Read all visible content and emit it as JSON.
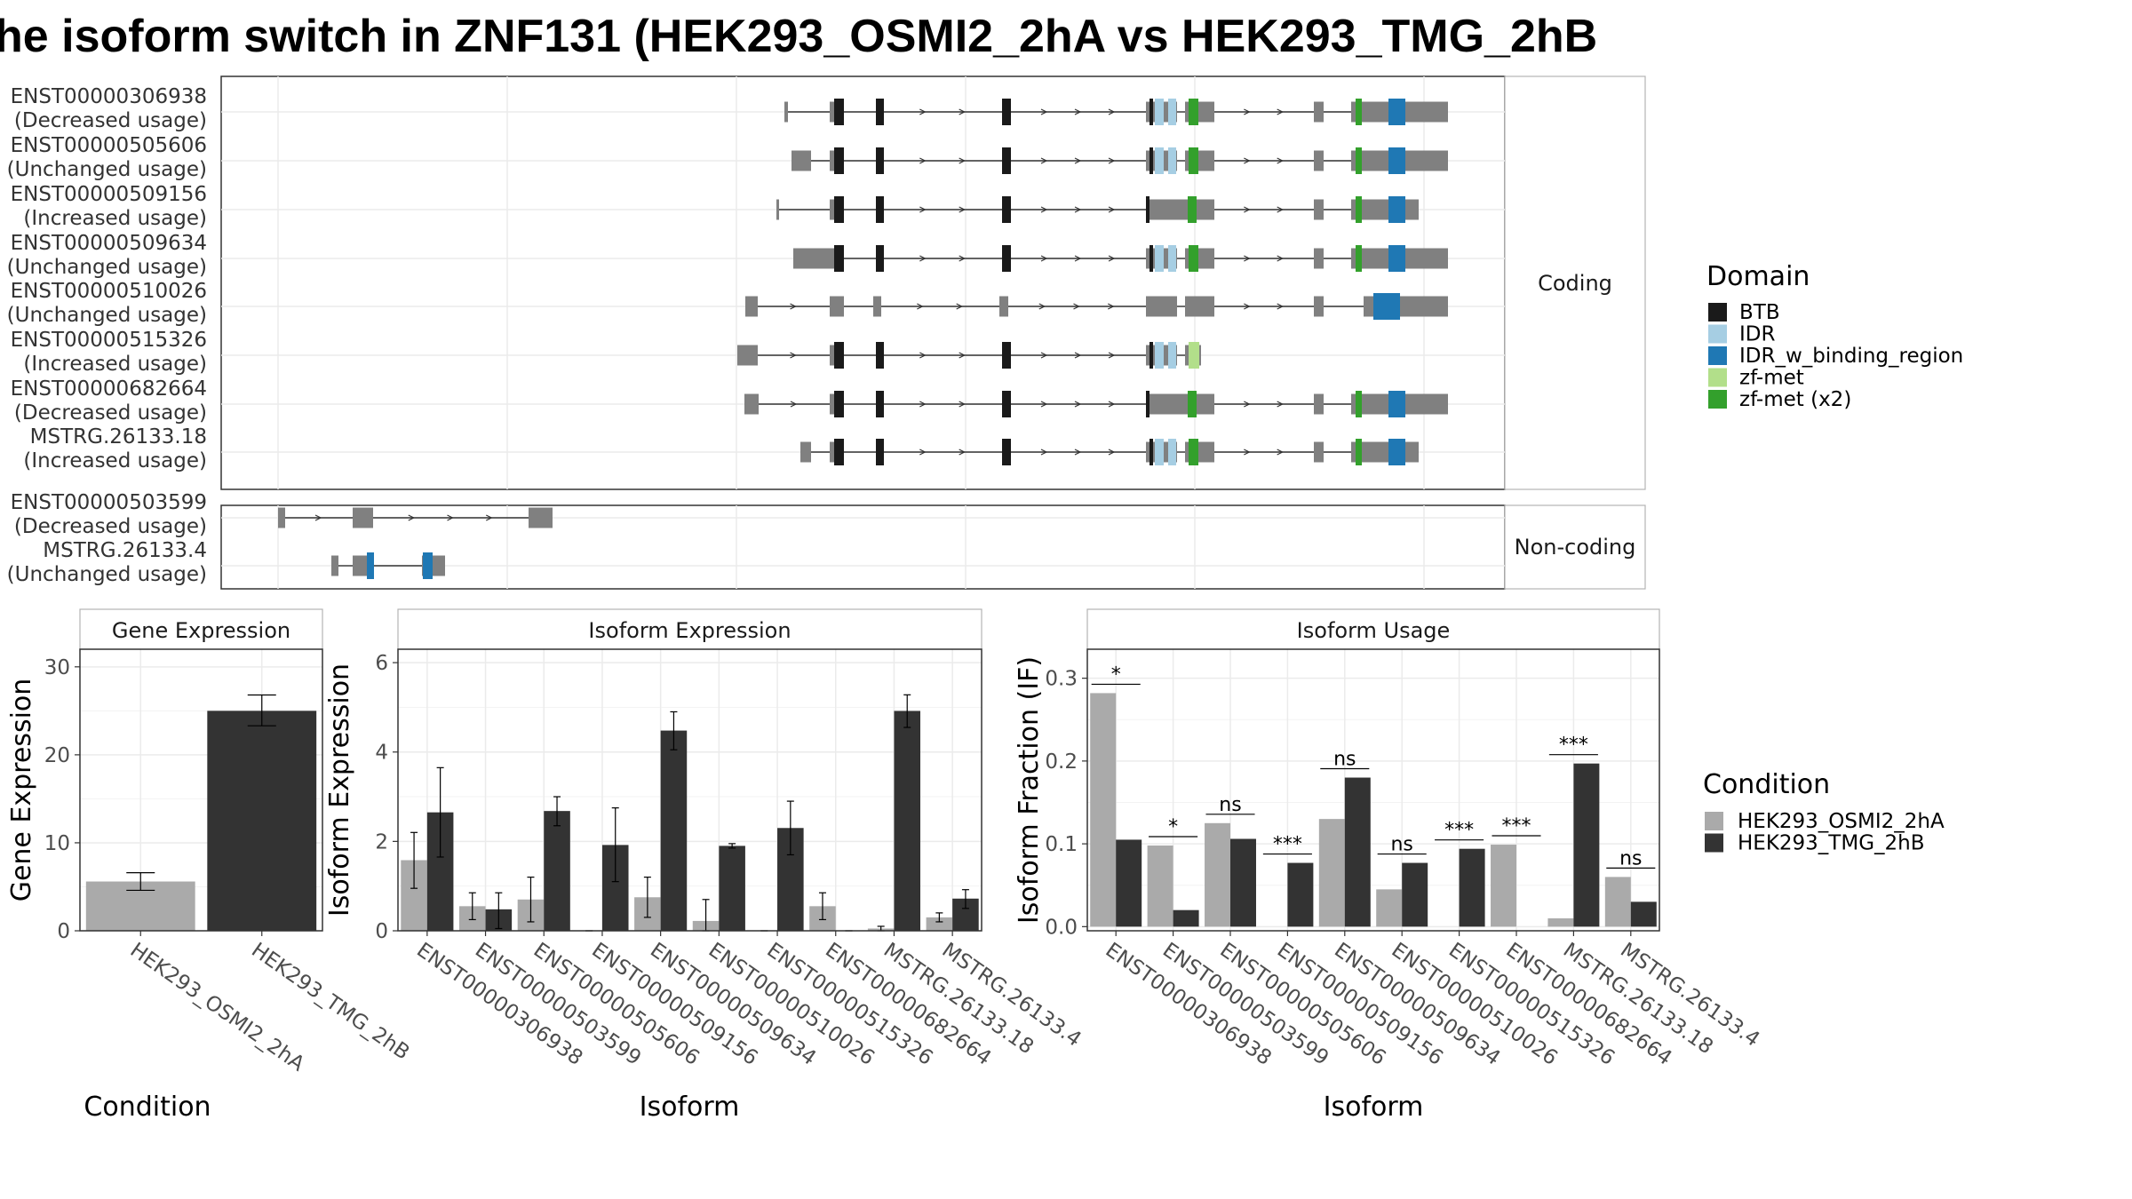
{
  "title": "he isoform switch in ZNF131 (HEK293_OSMI2_2hA vs HEK293_TMG_2hB",
  "colors": {
    "BTB": "#1a1a1a",
    "IDR": "#a6cee3",
    "IDR_w_binding_region": "#1f78b4",
    "zf-met": "#b2df8a",
    "zf-met (x2)": "#33a02c",
    "exon": "#808080",
    "HEK293_OSMI2_2hA": "#aaaaaa",
    "HEK293_TMG_2hB": "#333333"
  },
  "structure": {
    "coding_label": "Coding",
    "noncoding_label": "Non-coding",
    "coding": [
      {
        "id": "ENST00000306938",
        "status": "(Decreased usage)"
      },
      {
        "id": "ENST00000505606",
        "status": "(Unchanged usage)"
      },
      {
        "id": "ENST00000509156",
        "status": "(Increased usage)"
      },
      {
        "id": "ENST00000509634",
        "status": "(Unchanged usage)"
      },
      {
        "id": "ENST00000510026",
        "status": "(Unchanged usage)"
      },
      {
        "id": "ENST00000515326",
        "status": "(Increased usage)"
      },
      {
        "id": "ENST00000682664",
        "status": "(Decreased usage)"
      },
      {
        "id": "MSTRG.26133.18",
        "status": "(Increased usage)"
      }
    ],
    "noncoding": [
      {
        "id": "ENST00000503599",
        "status": "(Decreased usage)"
      },
      {
        "id": "MSTRG.26133.4",
        "status": "(Unchanged usage)"
      }
    ]
  },
  "legend_domain": {
    "title": "Domain",
    "items": [
      "BTB",
      "IDR",
      "IDR_w_binding_region",
      "zf-met",
      "zf-met (x2)"
    ]
  },
  "legend_condition": {
    "title": "Condition",
    "items": [
      "HEK293_OSMI2_2hA",
      "HEK293_TMG_2hB"
    ]
  },
  "chart_data": [
    {
      "type": "bar",
      "title": "Gene Expression",
      "xlabel": "Condition",
      "ylabel": "Gene Expression",
      "ylim": [
        0,
        32
      ],
      "yticks": [
        0,
        10,
        20,
        30
      ],
      "categories": [
        "HEK293_OSMI2_2hA",
        "HEK293_TMG_2hB"
      ],
      "values": [
        5.6,
        25.0
      ],
      "errors": [
        [
          4.6,
          6.6
        ],
        [
          23.3,
          26.8
        ]
      ]
    },
    {
      "type": "bar",
      "title": "Isoform Expression",
      "xlabel": "Isoform",
      "ylabel": "Isoform Expression",
      "ylim": [
        0,
        6.3
      ],
      "yticks": [
        0,
        2,
        4,
        6
      ],
      "categories": [
        "ENST00000306938",
        "ENST00000503599",
        "ENST00000505606",
        "ENST00000509156",
        "ENST00000509634",
        "ENST00000510026",
        "ENST00000515326",
        "ENST00000682664",
        "MSTRG.26133.18",
        "MSTRG.26133.4"
      ],
      "series": [
        {
          "name": "HEK293_OSMI2_2hA",
          "values": [
            1.58,
            0.55,
            0.7,
            0.0,
            0.75,
            0.22,
            0.0,
            0.55,
            0.05,
            0.3
          ],
          "errors": [
            [
              0.95,
              2.2
            ],
            [
              0.25,
              0.85
            ],
            [
              0.2,
              1.2
            ],
            [
              0.0,
              0.0
            ],
            [
              0.3,
              1.2
            ],
            [
              0.0,
              0.7
            ],
            [
              0.0,
              0.0
            ],
            [
              0.25,
              0.85
            ],
            [
              0.0,
              0.1
            ],
            [
              0.2,
              0.4
            ]
          ]
        },
        {
          "name": "HEK293_TMG_2hB",
          "values": [
            2.65,
            0.48,
            2.68,
            1.92,
            4.48,
            1.9,
            2.3,
            0.0,
            4.92,
            0.72
          ],
          "errors": [
            [
              1.65,
              3.65
            ],
            [
              0.05,
              0.85
            ],
            [
              2.35,
              3.0
            ],
            [
              1.1,
              2.75
            ],
            [
              4.05,
              4.9
            ],
            [
              1.85,
              1.95
            ],
            [
              1.7,
              2.9
            ],
            [
              0.0,
              0.0
            ],
            [
              4.55,
              5.28
            ],
            [
              0.5,
              0.92
            ]
          ]
        }
      ]
    },
    {
      "type": "bar",
      "title": "Isoform Usage",
      "xlabel": "Isoform",
      "ylabel": "Isoform Fraction (IF)",
      "ylim": [
        -0.005,
        0.335
      ],
      "yticks": [
        0.0,
        0.1,
        0.2,
        0.3
      ],
      "categories": [
        "ENST00000306938",
        "ENST00000503599",
        "ENST00000505606",
        "ENST00000509156",
        "ENST00000509634",
        "ENST00000510026",
        "ENST00000515326",
        "ENST00000682664",
        "MSTRG.26133.18",
        "MSTRG.26133.4"
      ],
      "series": [
        {
          "name": "HEK293_OSMI2_2hA",
          "values": [
            0.282,
            0.098,
            0.125,
            0.0,
            0.13,
            0.045,
            0.0,
            0.099,
            0.01,
            0.06
          ]
        },
        {
          "name": "HEK293_TMG_2hB",
          "values": [
            0.105,
            0.02,
            0.106,
            0.077,
            0.18,
            0.077,
            0.094,
            0.0,
            0.197,
            0.03
          ]
        }
      ],
      "significance": [
        "*",
        "*",
        "ns",
        "***",
        "ns",
        "ns",
        "***",
        "***",
        "***",
        "ns"
      ]
    }
  ]
}
